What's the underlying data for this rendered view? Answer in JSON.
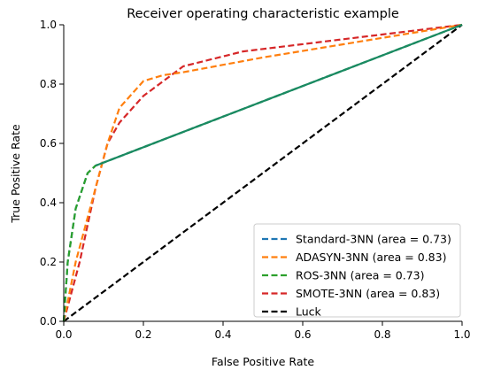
{
  "chart_data": {
    "type": "line",
    "title": "Receiver operating characteristic example",
    "xlabel": "False Positive Rate",
    "ylabel": "True Positive Rate",
    "xlim": [
      0,
      1
    ],
    "ylim": [
      0,
      1
    ],
    "x_ticks": [
      "0.0",
      "0.2",
      "0.4",
      "0.6",
      "0.8",
      "1.0"
    ],
    "y_ticks": [
      "0.0",
      "0.2",
      "0.4",
      "0.6",
      "0.8",
      "1.0"
    ],
    "grid": false,
    "legend_position": "lower-right",
    "series": [
      {
        "name": "Standard-3NN (area = 0.73)",
        "color": "#1f77b4",
        "dash": "dashed",
        "points": [
          [
            0.0,
            0.0
          ],
          [
            0.01,
            0.2
          ],
          [
            0.03,
            0.38
          ],
          [
            0.06,
            0.5
          ],
          [
            0.08,
            0.525
          ],
          [
            1.0,
            1.0
          ]
        ]
      },
      {
        "name": "ADASYN-3NN (area = 0.83)",
        "color": "#ff7f0e",
        "dash": "dashed",
        "points": [
          [
            0.0,
            0.0
          ],
          [
            0.03,
            0.2
          ],
          [
            0.08,
            0.45
          ],
          [
            0.11,
            0.6
          ],
          [
            0.14,
            0.72
          ],
          [
            0.2,
            0.81
          ],
          [
            0.25,
            0.83
          ],
          [
            0.3,
            0.84
          ],
          [
            0.5,
            0.89
          ],
          [
            1.0,
            1.0
          ]
        ]
      },
      {
        "name": "ROS-3NN (area = 0.73)",
        "color": "#2ca02c",
        "dash": "dashed",
        "points": [
          [
            0.0,
            0.0
          ],
          [
            0.01,
            0.2
          ],
          [
            0.03,
            0.38
          ],
          [
            0.06,
            0.5
          ],
          [
            0.08,
            0.525
          ],
          [
            1.0,
            1.0
          ]
        ]
      },
      {
        "name": "SMOTE-3NN (area = 0.83)",
        "color": "#d62728",
        "dash": "dashed",
        "points": [
          [
            0.0,
            0.0
          ],
          [
            0.04,
            0.2
          ],
          [
            0.08,
            0.45
          ],
          [
            0.11,
            0.6
          ],
          [
            0.14,
            0.67
          ],
          [
            0.2,
            0.76
          ],
          [
            0.3,
            0.86
          ],
          [
            0.45,
            0.91
          ],
          [
            1.0,
            1.0
          ]
        ]
      },
      {
        "name": "Luck",
        "color": "#000000",
        "dash": "dashed",
        "points": [
          [
            0.0,
            0.0
          ],
          [
            1.0,
            1.0
          ]
        ]
      }
    ],
    "overlay_line": {
      "color": "#1a8a62",
      "points": [
        [
          0.08,
          0.525
        ],
        [
          1.0,
          1.0
        ]
      ]
    }
  }
}
